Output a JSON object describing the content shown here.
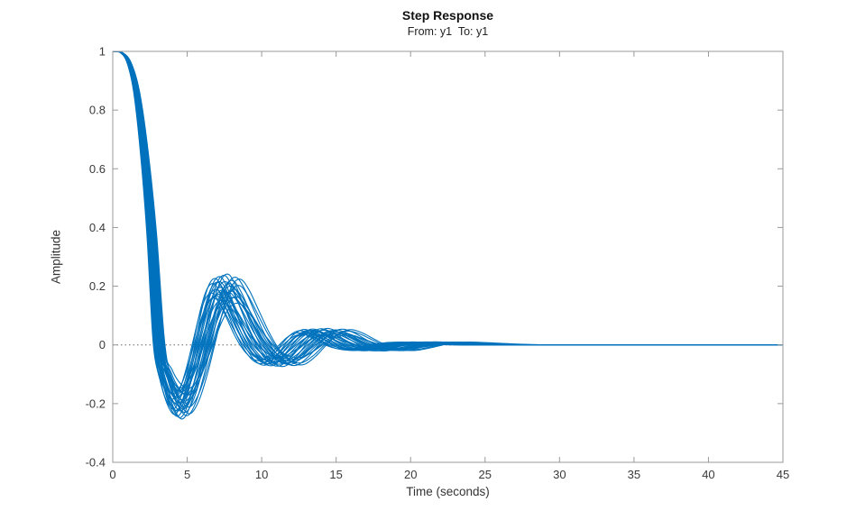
{
  "figure": {
    "title": "Step Response",
    "subtitle": "From: y1  To: y1",
    "xlabel": "Time (seconds)",
    "ylabel": "Amplitude"
  },
  "chart_data": {
    "type": "line",
    "title": "Step Response",
    "subtitle": "From: y1  To: y1",
    "xlabel": "Time (seconds)",
    "ylabel": "Amplitude",
    "xlim": [
      0,
      45
    ],
    "ylim": [
      -0.4,
      1
    ],
    "x_ticks": [
      0,
      5,
      10,
      15,
      20,
      25,
      30,
      35,
      40,
      45
    ],
    "y_ticks": [
      -0.4,
      -0.2,
      0,
      0.2,
      0.4,
      0.6,
      0.8,
      1
    ],
    "grid": false,
    "box": true,
    "legend": null,
    "zero_line": {
      "y": 0,
      "style": "dotted",
      "color": "#666666"
    },
    "line_color": "#0072BD",
    "line_width": 1.1,
    "description": "Ensemble of ~30 sampled step responses of an uncertain system. All curves start at amplitude 1 at t=0, fall steeply after t~1, cross zero near t~3, undershoot to about -0.15..-0.24 near t~4.5, rebound to a second peak of about +0.1..+0.24 near t~7, then exhibit small decaying oscillations and settle to 0 by t~20-25.",
    "master_curve": [
      [
        0.0,
        1.0
      ],
      [
        0.6,
        0.995
      ],
      [
        1.1,
        0.96
      ],
      [
        1.6,
        0.86
      ],
      [
        2.1,
        0.66
      ],
      [
        2.6,
        0.38
      ],
      [
        3.1,
        0.0
      ],
      [
        3.6,
        -0.13
      ],
      [
        4.1,
        -0.2
      ],
      [
        4.6,
        -0.225
      ],
      [
        5.1,
        -0.185
      ],
      [
        5.6,
        -0.1
      ],
      [
        6.1,
        0.01
      ],
      [
        6.6,
        0.12
      ],
      [
        7.1,
        0.195
      ],
      [
        7.6,
        0.215
      ],
      [
        8.1,
        0.18
      ],
      [
        8.7,
        0.11
      ],
      [
        9.3,
        0.04
      ],
      [
        9.9,
        -0.015
      ],
      [
        10.6,
        -0.055
      ],
      [
        11.3,
        -0.065
      ],
      [
        12.0,
        -0.04
      ],
      [
        12.7,
        0.0
      ],
      [
        13.4,
        0.035
      ],
      [
        14.1,
        0.05
      ],
      [
        14.8,
        0.04
      ],
      [
        15.5,
        0.02
      ],
      [
        16.3,
        -0.002
      ],
      [
        17.1,
        -0.015
      ],
      [
        18.0,
        -0.018
      ],
      [
        19.0,
        -0.008
      ],
      [
        20.0,
        0.004
      ],
      [
        21.0,
        0.009
      ],
      [
        22.0,
        0.008
      ],
      [
        23.5,
        0.004
      ],
      [
        25.0,
        0.001
      ],
      [
        27.0,
        0.0
      ],
      [
        30.0,
        0.0
      ],
      [
        45.0,
        0.0
      ]
    ],
    "amp_scale_start_t": 3.1,
    "curve_variations": [
      [
        1.0,
        1.0
      ],
      [
        0.92,
        0.88
      ],
      [
        1.05,
        0.93
      ],
      [
        0.95,
        1.08
      ],
      [
        1.1,
        0.76
      ],
      [
        0.89,
        0.97
      ],
      [
        1.02,
        1.12
      ],
      [
        0.97,
        0.7
      ],
      [
        1.08,
        0.88
      ],
      [
        0.91,
        1.05
      ],
      [
        1.12,
        0.94
      ],
      [
        0.94,
        0.8
      ],
      [
        1.06,
        1.02
      ],
      [
        0.9,
        0.74
      ],
      [
        1.03,
        0.83
      ],
      [
        0.99,
        1.1
      ],
      [
        1.11,
        0.66
      ],
      [
        0.93,
        0.99
      ],
      [
        1.07,
        0.75
      ],
      [
        0.96,
        0.91
      ],
      [
        1.13,
        1.04
      ],
      [
        0.88,
        0.82
      ],
      [
        1.01,
        0.71
      ],
      [
        1.04,
        0.97
      ],
      [
        0.98,
        0.87
      ],
      [
        1.09,
        1.07
      ],
      [
        0.92,
        0.78
      ],
      [
        1.0,
        0.65
      ],
      [
        1.06,
        0.85
      ],
      [
        0.95,
        1.0
      ]
    ]
  },
  "colors": {
    "line": "#0072BD",
    "axis_box": "#999999",
    "tick_text": "#3a3a3a",
    "zero_line": "#666666",
    "background": "#ffffff"
  }
}
